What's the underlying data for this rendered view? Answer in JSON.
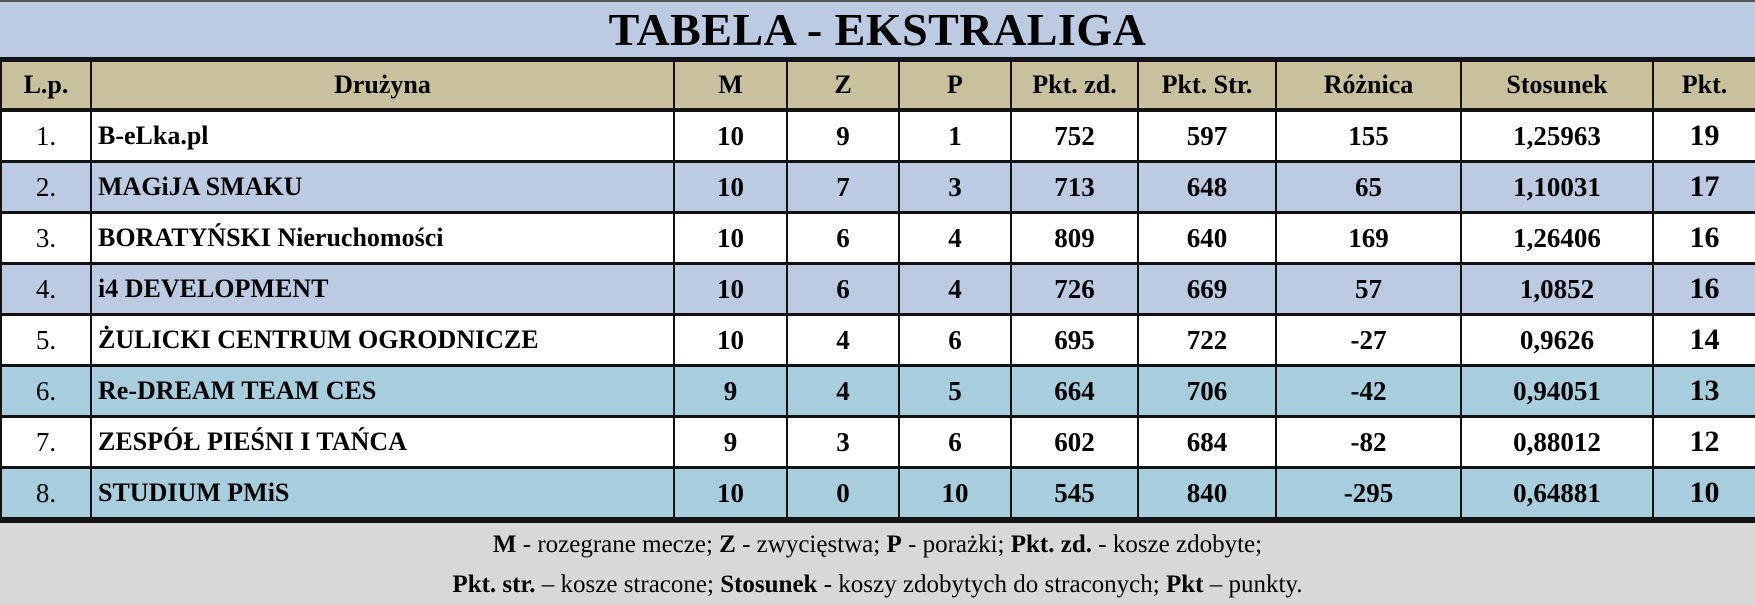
{
  "title": "TABELA - EKSTRALIGA",
  "columns": [
    "L.p.",
    "Drużyna",
    "M",
    "Z",
    "P",
    "Pkt. zd.",
    "Pkt. Str.",
    "Różnica",
    "Stosunek",
    "Pkt."
  ],
  "colors": {
    "title_bg": "#bccbe2",
    "header_bg": "#c9c19e",
    "row_white": "#ffffff",
    "row_blue": "#bccbe2",
    "row_teal": "#a8cddd",
    "footer_bg": "#d8d8d8"
  },
  "rows": [
    {
      "lp": "1.",
      "team": "B-eLka.pl",
      "m": "10",
      "z": "9",
      "p": "1",
      "zd": "752",
      "str": "597",
      "diff": "155",
      "ratio": "1,25963",
      "pkt": "19",
      "style": "white"
    },
    {
      "lp": "2.",
      "team": "MAGiJA SMAKU",
      "m": "10",
      "z": "7",
      "p": "3",
      "zd": "713",
      "str": "648",
      "diff": "65",
      "ratio": "1,10031",
      "pkt": "17",
      "style": "blue"
    },
    {
      "lp": "3.",
      "team": "BORATYŃSKI Nieruchomości",
      "m": "10",
      "z": "6",
      "p": "4",
      "zd": "809",
      "str": "640",
      "diff": "169",
      "ratio": "1,26406",
      "pkt": "16",
      "style": "white"
    },
    {
      "lp": "4.",
      "team": "i4 DEVELOPMENT",
      "m": "10",
      "z": "6",
      "p": "4",
      "zd": "726",
      "str": "669",
      "diff": "57",
      "ratio": "1,0852",
      "pkt": "16",
      "style": "blue"
    },
    {
      "lp": "5.",
      "team": "ŻULICKI CENTRUM OGRODNICZE",
      "m": "10",
      "z": "4",
      "p": "6",
      "zd": "695",
      "str": "722",
      "diff": "-27",
      "ratio": "0,9626",
      "pkt": "14",
      "style": "white"
    },
    {
      "lp": "6.",
      "team": "Re-DREAM TEAM CES",
      "m": "9",
      "z": "4",
      "p": "5",
      "zd": "664",
      "str": "706",
      "diff": "-42",
      "ratio": "0,94051",
      "pkt": "13",
      "style": "teal"
    },
    {
      "lp": "7.",
      "team": "ZESPÓŁ PIEŚNI I TAŃCA",
      "m": "9",
      "z": "3",
      "p": "6",
      "zd": "602",
      "str": "684",
      "diff": "-82",
      "ratio": "0,88012",
      "pkt": "12",
      "style": "white"
    },
    {
      "lp": "8.",
      "team": "STUDIUM PMiS",
      "m": "10",
      "z": "0",
      "p": "10",
      "zd": "545",
      "str": "840",
      "diff": "-295",
      "ratio": "0,64881",
      "pkt": "10",
      "style": "teal"
    }
  ],
  "legend": {
    "line1": [
      {
        "term": "M",
        "desc": " - rozegrane mecze; "
      },
      {
        "term": "Z",
        "desc": " - zwycięstwa; "
      },
      {
        "term": "P",
        "desc": " - porażki; "
      },
      {
        "term": "Pkt. zd.",
        "desc": " - kosze zdobyte;"
      }
    ],
    "line2": [
      {
        "term": "Pkt. str.",
        "desc": " – kosze stracone; "
      },
      {
        "term": "Stosunek",
        "desc": " - koszy zdobytych do straconych; "
      },
      {
        "term": "Pkt",
        "desc": " – punkty."
      }
    ]
  }
}
